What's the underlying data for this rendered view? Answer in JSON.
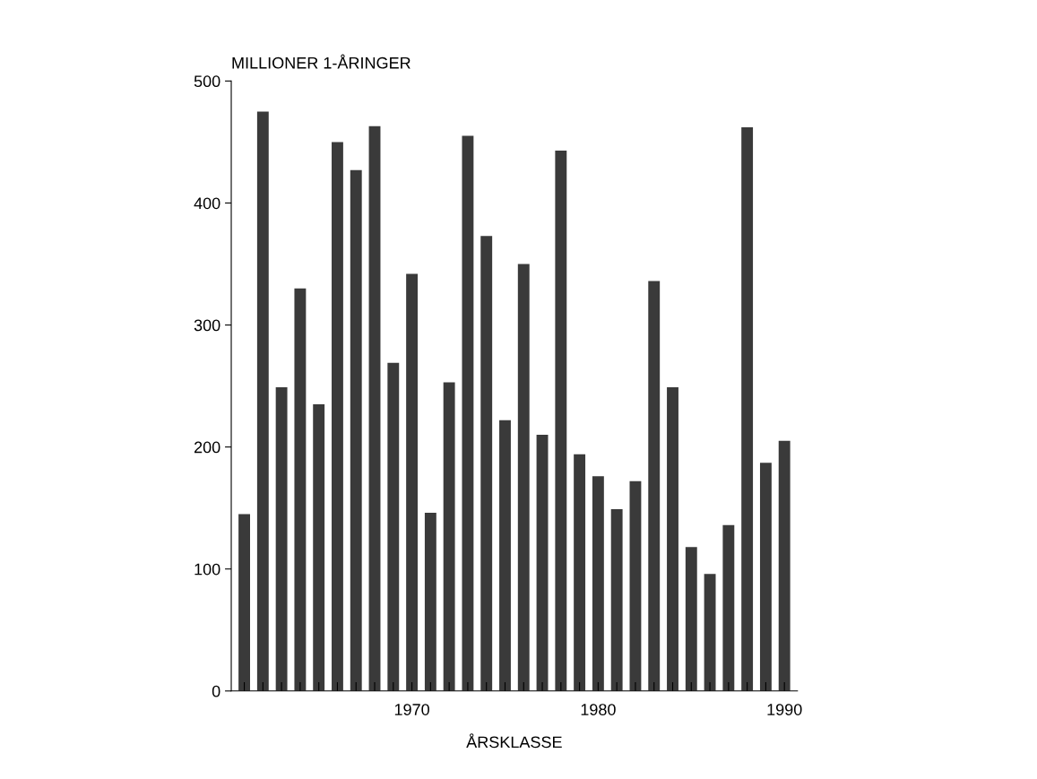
{
  "chart_data": {
    "type": "bar",
    "ylabel": "MILLIONER 1-ÅRINGER",
    "xlabel": "ÅRSKLASSE",
    "categories": [
      null,
      null,
      null,
      null,
      null,
      null,
      null,
      null,
      null,
      "1970",
      null,
      null,
      null,
      null,
      null,
      null,
      null,
      null,
      null,
      "1980",
      null,
      null,
      null,
      null,
      null,
      null,
      null,
      null,
      null,
      "1990"
    ],
    "values": [
      145,
      475,
      249,
      330,
      235,
      450,
      427,
      463,
      269,
      342,
      146,
      253,
      455,
      373,
      222,
      350,
      210,
      443,
      194,
      176,
      149,
      172,
      336,
      249,
      118,
      96,
      136,
      462,
      187,
      205
    ],
    "color": "#3a3a3a",
    "ylim": [
      0,
      500
    ],
    "yticks": [
      0,
      100,
      200,
      300,
      400,
      500
    ],
    "grid": false
  }
}
